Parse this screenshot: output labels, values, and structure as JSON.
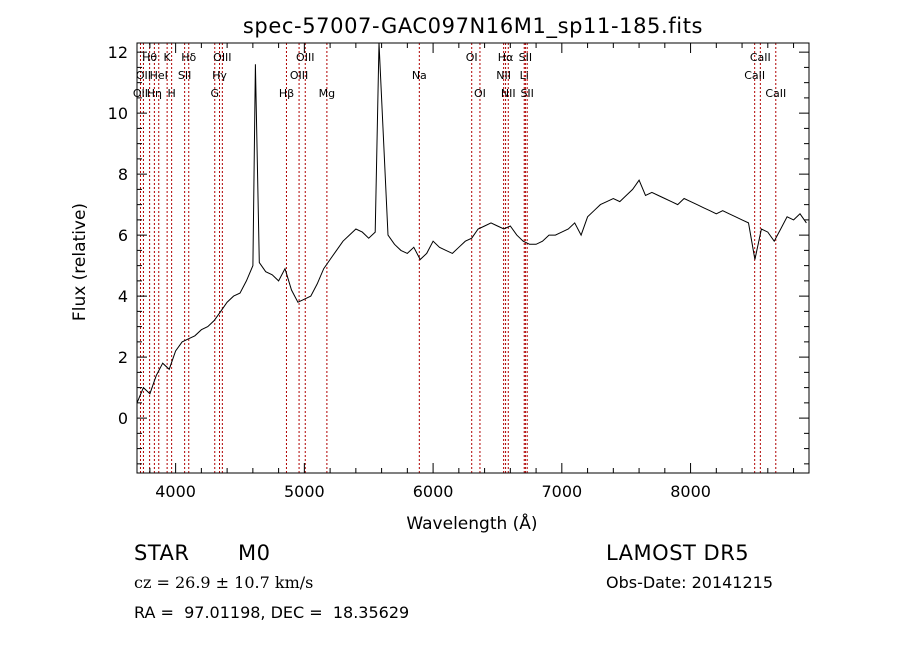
{
  "chart_data": {
    "type": "line",
    "title": "spec-57007-GAC097N16M1_sp11-185.fits",
    "xlabel": "Wavelength (Å)",
    "ylabel": "Flux (relative)",
    "xlim": [
      3700,
      8920
    ],
    "ylim": [
      -1.8,
      12.3
    ],
    "xticks": [
      4000,
      5000,
      6000,
      7000,
      8000
    ],
    "yticks": [
      0,
      2,
      4,
      6,
      8,
      10,
      12
    ],
    "grid": false,
    "series": [
      {
        "x": [
          3700,
          3750,
          3800,
          3850,
          3900,
          3950,
          4000,
          4050,
          4100,
          4150,
          4200,
          4250,
          4300,
          4350,
          4400,
          4450,
          4500,
          4550,
          4600,
          4620,
          4650,
          4700,
          4750,
          4800,
          4850,
          4900,
          4950,
          5000,
          5050,
          5100,
          5150,
          5200,
          5250,
          5300,
          5350,
          5400,
          5450,
          5500,
          5550,
          5580,
          5650,
          5700,
          5750,
          5800,
          5850,
          5900,
          5950,
          6000,
          6050,
          6100,
          6150,
          6200,
          6250,
          6300,
          6350,
          6400,
          6450,
          6500,
          6550,
          6600,
          6650,
          6700,
          6750,
          6800,
          6850,
          6900,
          6950,
          7000,
          7050,
          7100,
          7150,
          7200,
          7250,
          7300,
          7350,
          7400,
          7450,
          7500,
          7550,
          7600,
          7650,
          7700,
          7750,
          7800,
          7850,
          7900,
          7950,
          8000,
          8050,
          8100,
          8150,
          8200,
          8250,
          8300,
          8350,
          8400,
          8450,
          8500,
          8550,
          8600,
          8650,
          8700,
          8750,
          8800,
          8850,
          8900
        ],
        "y": [
          0.5,
          1.0,
          0.8,
          1.4,
          1.8,
          1.6,
          2.2,
          2.5,
          2.6,
          2.7,
          2.9,
          3.0,
          3.2,
          3.5,
          3.8,
          4.0,
          4.1,
          4.5,
          5.0,
          11.6,
          5.1,
          4.8,
          4.7,
          4.5,
          4.9,
          4.2,
          3.8,
          3.9,
          4.0,
          4.4,
          4.9,
          5.2,
          5.5,
          5.8,
          6.0,
          6.2,
          6.1,
          5.9,
          6.1,
          12.3,
          6.0,
          5.7,
          5.5,
          5.4,
          5.6,
          5.2,
          5.4,
          5.8,
          5.6,
          5.5,
          5.4,
          5.6,
          5.8,
          5.9,
          6.2,
          6.3,
          6.4,
          6.3,
          6.2,
          6.3,
          6.0,
          5.8,
          5.7,
          5.7,
          5.8,
          6.0,
          6.0,
          6.1,
          6.2,
          6.4,
          6.0,
          6.6,
          6.8,
          7.0,
          7.1,
          7.2,
          7.1,
          7.3,
          7.5,
          7.8,
          7.3,
          7.4,
          7.3,
          7.2,
          7.1,
          7.0,
          7.2,
          7.1,
          7.0,
          6.9,
          6.8,
          6.7,
          6.8,
          6.7,
          6.6,
          6.5,
          6.4,
          5.2,
          6.2,
          6.1,
          5.8,
          6.2,
          6.6,
          6.5,
          6.7,
          6.4
        ]
      }
    ],
    "lines": [
      {
        "wl": 3727,
        "label": "OII",
        "row": 2
      },
      {
        "wl": 3750,
        "label": "OII",
        "row": 1
      },
      {
        "wl": 3798,
        "label": "Hθ",
        "row": 0
      },
      {
        "wl": 3835,
        "label": "Hη",
        "row": 2
      },
      {
        "wl": 3869,
        "label": "HeI",
        "row": 1
      },
      {
        "wl": 3934,
        "label": "K",
        "row": 0
      },
      {
        "wl": 3969,
        "label": "H",
        "row": 2
      },
      {
        "wl": 4070,
        "label": "SII",
        "row": 1
      },
      {
        "wl": 4102,
        "label": "Hδ",
        "row": 0
      },
      {
        "wl": 4304,
        "label": "G",
        "row": 2
      },
      {
        "wl": 4341,
        "label": "Hγ",
        "row": 1
      },
      {
        "wl": 4363,
        "label": "OIII",
        "row": 0
      },
      {
        "wl": 4861,
        "label": "Hβ",
        "row": 2
      },
      {
        "wl": 4959,
        "label": "OIII",
        "row": 1
      },
      {
        "wl": 5007,
        "label": "OIII",
        "row": 0
      },
      {
        "wl": 5175,
        "label": "Mg",
        "row": 2
      },
      {
        "wl": 5893,
        "label": "Na",
        "row": 1
      },
      {
        "wl": 6300,
        "label": "OI",
        "row": 0
      },
      {
        "wl": 6364,
        "label": "OI",
        "row": 2
      },
      {
        "wl": 6548,
        "label": "NII",
        "row": 1
      },
      {
        "wl": 6563,
        "label": "Hα",
        "row": 0
      },
      {
        "wl": 6584,
        "label": "NII",
        "row": 2
      },
      {
        "wl": 6708,
        "label": "Li",
        "row": 1
      },
      {
        "wl": 6717,
        "label": "SII",
        "row": 0
      },
      {
        "wl": 6731,
        "label": "SII",
        "row": 2
      },
      {
        "wl": 8498,
        "label": "CaII",
        "row": 1
      },
      {
        "wl": 8542,
        "label": "CaII",
        "row": 0
      },
      {
        "wl": 8662,
        "label": "CaII",
        "row": 2
      }
    ]
  },
  "info": {
    "class": "STAR",
    "subclass": "M0",
    "survey": "LAMOST DR5",
    "cz": "cz = 26.9 ± 10.7 km/s",
    "obs_date": "Obs-Date: 20141215",
    "coords": "RA =  97.01198, DEC =  18.35629"
  }
}
